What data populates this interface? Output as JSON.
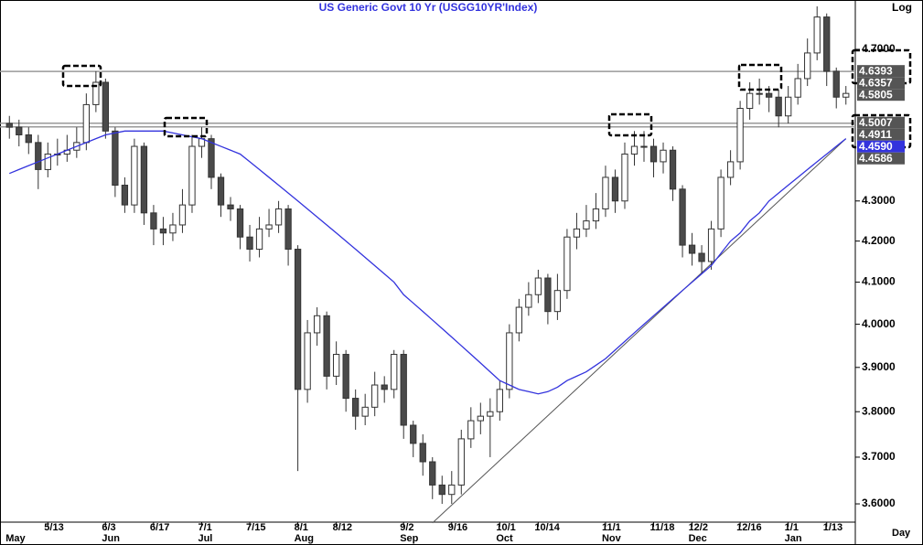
{
  "chart_data": {
    "type": "candlestick",
    "title": "US  Generic  Govt  10  Yr  (USGG10YR'Index)",
    "scale_label": "Log",
    "x_label": "Day",
    "log_scale": true,
    "categories": [
      null,
      null,
      null,
      null,
      "5/13",
      null,
      null,
      null,
      null,
      null,
      "6/3",
      null,
      null,
      null,
      null,
      "6/17",
      null,
      null,
      null,
      null,
      "7/1",
      null,
      null,
      null,
      null,
      "7/15",
      null,
      null,
      null,
      null,
      "8/1",
      null,
      null,
      null,
      "8/12",
      null,
      null,
      null,
      null,
      null,
      null,
      "9/2",
      null,
      null,
      null,
      null,
      "9/16",
      null,
      null,
      null,
      null,
      "10/1",
      null,
      null,
      null,
      "10/14",
      null,
      null,
      null,
      null,
      null,
      null,
      "11/1",
      null,
      null,
      null,
      null,
      "11/18",
      null,
      null,
      null,
      "12/2",
      null,
      null,
      null,
      null,
      "12/16",
      null,
      null,
      null,
      null,
      "1/1",
      null,
      null,
      null,
      "1/13",
      null,
      null
    ],
    "month_categories": [
      "May",
      null,
      null,
      null,
      null,
      null,
      null,
      null,
      null,
      null,
      "Jun",
      null,
      null,
      null,
      null,
      null,
      null,
      null,
      null,
      null,
      "Jul",
      null,
      null,
      null,
      null,
      null,
      null,
      null,
      null,
      null,
      "Aug",
      null,
      null,
      null,
      null,
      null,
      null,
      null,
      null,
      null,
      null,
      "Sep",
      null,
      null,
      null,
      null,
      null,
      null,
      null,
      null,
      null,
      "Oct",
      null,
      null,
      null,
      null,
      null,
      null,
      null,
      null,
      null,
      null,
      "Nov",
      null,
      null,
      null,
      null,
      null,
      null,
      null,
      null,
      "Dec",
      null,
      null,
      null,
      null,
      null,
      null,
      null,
      null,
      null,
      "Jan",
      null,
      null,
      null,
      null,
      null,
      null
    ],
    "open": [
      4.5,
      4.49,
      4.47,
      4.45,
      4.38,
      4.42,
      4.42,
      4.43,
      4.45,
      4.55,
      4.61,
      4.48,
      4.34,
      4.29,
      4.44,
      4.27,
      4.23,
      4.22,
      4.24,
      4.29,
      4.44,
      4.46,
      4.36,
      4.29,
      4.28,
      4.21,
      4.18,
      4.23,
      4.24,
      4.28,
      4.18,
      3.85,
      3.98,
      4.02,
      3.88,
      3.93,
      3.83,
      3.79,
      3.81,
      3.86,
      3.85,
      3.93,
      3.77,
      3.73,
      3.69,
      3.64,
      3.62,
      3.64,
      3.74,
      3.78,
      3.79,
      3.8,
      3.85,
      3.98,
      4.04,
      4.07,
      4.11,
      4.03,
      4.08,
      4.21,
      4.23,
      4.25,
      4.28,
      4.36,
      4.3,
      4.42,
      4.44,
      4.44,
      4.4,
      4.43,
      4.33,
      4.19,
      4.17,
      4.15,
      4.23,
      4.36,
      4.4,
      4.54,
      4.58,
      4.58,
      4.57,
      4.52,
      4.57,
      4.62,
      4.69,
      4.79,
      4.64,
      4.57
    ],
    "high": [
      4.52,
      4.51,
      4.49,
      4.47,
      4.45,
      4.46,
      4.47,
      4.49,
      4.58,
      4.64,
      4.62,
      4.49,
      4.36,
      4.46,
      4.45,
      4.29,
      4.26,
      4.27,
      4.33,
      4.47,
      4.49,
      4.47,
      4.37,
      4.31,
      4.29,
      4.24,
      4.26,
      4.28,
      4.3,
      4.29,
      4.19,
      4.01,
      4.04,
      4.03,
      3.96,
      3.94,
      3.85,
      3.84,
      3.89,
      3.88,
      3.94,
      3.94,
      3.78,
      3.75,
      3.7,
      3.66,
      3.67,
      3.76,
      3.81,
      3.82,
      3.83,
      3.87,
      4.0,
      4.06,
      4.1,
      4.13,
      4.12,
      4.12,
      4.23,
      4.27,
      4.29,
      4.32,
      4.39,
      4.38,
      4.45,
      4.48,
      4.48,
      4.46,
      4.45,
      4.44,
      4.34,
      4.22,
      4.19,
      4.25,
      4.38,
      4.43,
      4.56,
      4.61,
      4.62,
      4.6,
      4.59,
      4.6,
      4.66,
      4.73,
      4.82,
      4.8,
      4.65,
      4.6
    ],
    "low": [
      4.46,
      4.44,
      4.42,
      4.33,
      4.36,
      4.39,
      4.4,
      4.41,
      4.43,
      4.53,
      4.46,
      4.31,
      4.27,
      4.27,
      4.24,
      4.19,
      4.19,
      4.2,
      4.22,
      4.27,
      4.41,
      4.33,
      4.26,
      4.25,
      4.18,
      4.15,
      4.16,
      4.21,
      4.22,
      4.14,
      3.67,
      3.82,
      3.95,
      3.85,
      3.86,
      3.8,
      3.76,
      3.77,
      3.79,
      3.82,
      3.83,
      3.74,
      3.7,
      3.66,
      3.61,
      3.6,
      3.6,
      3.62,
      3.72,
      3.75,
      3.7,
      3.78,
      3.83,
      3.96,
      4.02,
      4.05,
      4.0,
      4.01,
      4.06,
      4.18,
      4.21,
      4.23,
      4.26,
      4.27,
      4.28,
      4.39,
      4.4,
      4.36,
      4.37,
      4.3,
      4.16,
      4.14,
      4.12,
      4.13,
      4.21,
      4.34,
      4.38,
      4.51,
      4.55,
      4.53,
      4.49,
      4.5,
      4.55,
      4.6,
      4.67,
      4.6,
      4.54,
      4.55
    ],
    "close": [
      4.49,
      4.47,
      4.45,
      4.38,
      4.42,
      4.42,
      4.43,
      4.45,
      4.55,
      4.61,
      4.48,
      4.34,
      4.29,
      4.44,
      4.27,
      4.23,
      4.22,
      4.24,
      4.29,
      4.44,
      4.46,
      4.36,
      4.29,
      4.28,
      4.21,
      4.18,
      4.23,
      4.24,
      4.28,
      4.18,
      3.85,
      3.98,
      4.02,
      3.88,
      3.93,
      3.83,
      3.79,
      3.81,
      3.86,
      3.85,
      3.93,
      3.77,
      3.73,
      3.69,
      3.64,
      3.62,
      3.64,
      3.74,
      3.78,
      3.79,
      3.8,
      3.85,
      3.98,
      4.04,
      4.07,
      4.11,
      4.03,
      4.08,
      4.21,
      4.23,
      4.25,
      4.28,
      4.36,
      4.3,
      4.42,
      4.44,
      4.44,
      4.4,
      4.43,
      4.33,
      4.19,
      4.17,
      4.15,
      4.23,
      4.36,
      4.4,
      4.54,
      4.58,
      4.58,
      4.57,
      4.52,
      4.57,
      4.62,
      4.69,
      4.79,
      4.64,
      4.57,
      4.58
    ],
    "up_color": "#ffffff",
    "down_color": "#4a4a4a",
    "moving_average": {
      "color": "#3333dd",
      "values": [
        4.37,
        4.38,
        4.39,
        4.4,
        4.41,
        4.42,
        4.43,
        4.44,
        4.45,
        4.46,
        4.47,
        4.475,
        4.48,
        4.48,
        4.48,
        4.48,
        4.48,
        4.475,
        4.47,
        4.465,
        4.46,
        4.45,
        4.44,
        4.43,
        4.42,
        4.4,
        4.38,
        4.36,
        4.34,
        4.32,
        4.3,
        4.28,
        4.26,
        4.24,
        4.22,
        4.2,
        4.18,
        4.16,
        4.14,
        4.12,
        4.1,
        4.07,
        4.05,
        4.03,
        4.01,
        3.99,
        3.97,
        3.95,
        3.93,
        3.91,
        3.89,
        3.87,
        3.86,
        3.85,
        3.845,
        3.84,
        3.845,
        3.855,
        3.87,
        3.88,
        3.89,
        3.905,
        3.92,
        3.94,
        3.96,
        3.98,
        4.0,
        4.02,
        4.04,
        4.06,
        4.08,
        4.1,
        4.12,
        4.14,
        4.17,
        4.2,
        4.22,
        4.25,
        4.27,
        4.3,
        4.32,
        4.34,
        4.36,
        4.38,
        4.4,
        4.42,
        4.44,
        4.46
      ]
    },
    "hlines": [
      4.6393,
      4.5007,
      4.4911
    ],
    "trendline": {
      "x": [
        44,
        87
      ],
      "y": [
        3.56,
        4.46
      ]
    },
    "price_labels": [
      {
        "value": 4.6393,
        "label": "4.6393",
        "color": "#555555"
      },
      {
        "value": 4.6357,
        "label": "4.6357",
        "color": "#555555"
      },
      {
        "value": 4.5805,
        "label": "4.5805",
        "color": "#555555"
      },
      {
        "value": 4.5007,
        "label": "4.5007",
        "color": "#555555"
      },
      {
        "value": 4.4911,
        "label": "4.4911",
        "color": "#555555"
      },
      {
        "value": 4.459,
        "label": "4.4590",
        "color": "#3333dd"
      },
      {
        "value": 4.4586,
        "label": "4.4586",
        "color": "#555555"
      }
    ],
    "ylim": [
      3.554,
      4.838
    ],
    "yticks": [
      {
        "value": 3.6,
        "label": "3.6000"
      },
      {
        "value": 3.7,
        "label": "3.7000"
      },
      {
        "value": 3.8,
        "label": "3.8000"
      },
      {
        "value": 3.9,
        "label": "3.9000"
      },
      {
        "value": 4.0,
        "label": "4.0000"
      },
      {
        "value": 4.1,
        "label": "4.1000"
      },
      {
        "value": 4.2,
        "label": "4.2000"
      },
      {
        "value": 4.3,
        "label": "4.3000"
      },
      {
        "value": 4.7,
        "label": "4.7000"
      }
    ]
  }
}
